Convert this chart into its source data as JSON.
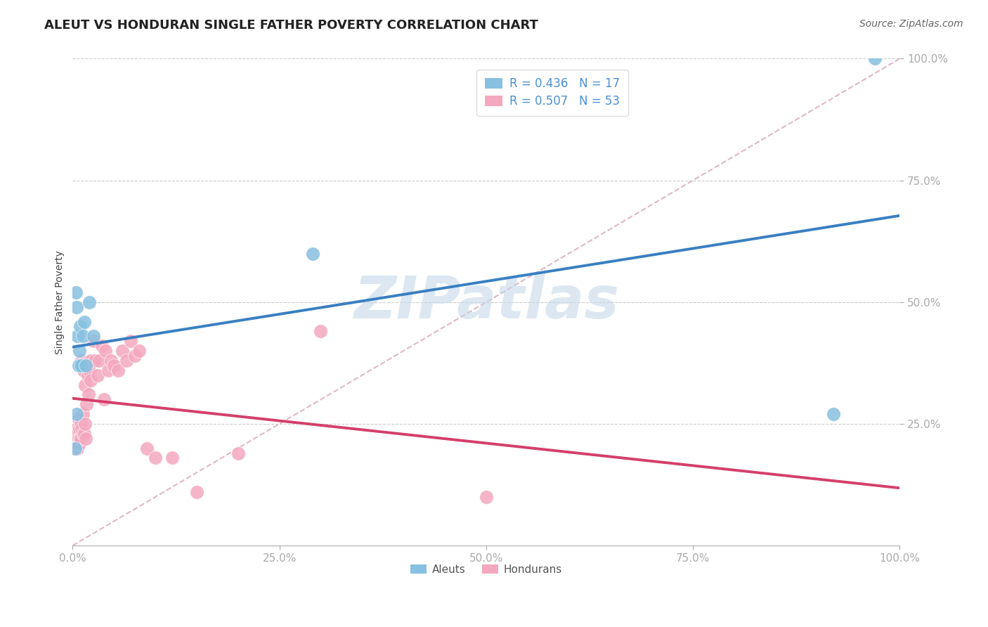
{
  "title": "ALEUT VS HONDURAN SINGLE FATHER POVERTY CORRELATION CHART",
  "source": "Source: ZipAtlas.com",
  "ylabel": "Single Father Poverty",
  "xlim": [
    0.0,
    1.0
  ],
  "ylim": [
    0.0,
    1.0
  ],
  "xticks": [
    0.0,
    0.25,
    0.5,
    0.75,
    1.0
  ],
  "yticks": [
    0.25,
    0.5,
    0.75,
    1.0
  ],
  "xticklabels": [
    "0.0%",
    "25.0%",
    "50.0%",
    "75.0%",
    "100.0%"
  ],
  "yticklabels": [
    "25.0%",
    "50.0%",
    "75.0%",
    "100.0%"
  ],
  "aleut_R": 0.436,
  "aleut_N": 17,
  "honduran_R": 0.507,
  "honduran_N": 53,
  "aleut_color": "#87c0e0",
  "honduran_color": "#f4a8bf",
  "aleut_edge_color": "#87c0e0",
  "honduran_edge_color": "#f4a8bf",
  "aleut_line_color": "#3a7fc1",
  "honduran_line_color": "#d43f6a",
  "diagonal_color": "#e0b8c8",
  "watermark_color": "#c5d8ea",
  "background_color": "#ffffff",
  "grid_color": "#cccccc",
  "title_color": "#222222",
  "tick_color": "#4a90d9",
  "source_color": "#666666",
  "ylabel_color": "#444444",
  "legend_text_color": "#4a90d9",
  "legend_edge_color": "#dddddd",
  "aleut_x": [
    0.003,
    0.004,
    0.005,
    0.005,
    0.006,
    0.007,
    0.008,
    0.009,
    0.01,
    0.012,
    0.014,
    0.016,
    0.02,
    0.025,
    0.29,
    0.92,
    0.97
  ],
  "aleut_y": [
    0.2,
    0.52,
    0.27,
    0.49,
    0.43,
    0.37,
    0.4,
    0.45,
    0.37,
    0.43,
    0.46,
    0.37,
    0.5,
    0.43,
    0.6,
    0.27,
    1.0
  ],
  "honduran_x": [
    0.003,
    0.004,
    0.005,
    0.005,
    0.005,
    0.006,
    0.006,
    0.007,
    0.007,
    0.008,
    0.008,
    0.009,
    0.01,
    0.01,
    0.011,
    0.011,
    0.012,
    0.012,
    0.013,
    0.014,
    0.015,
    0.015,
    0.016,
    0.017,
    0.018,
    0.019,
    0.02,
    0.021,
    0.022,
    0.023,
    0.025,
    0.027,
    0.03,
    0.032,
    0.035,
    0.038,
    0.04,
    0.043,
    0.046,
    0.05,
    0.055,
    0.06,
    0.065,
    0.07,
    0.075,
    0.08,
    0.09,
    0.1,
    0.12,
    0.15,
    0.2,
    0.3,
    0.5
  ],
  "honduran_y": [
    0.21,
    0.23,
    0.2,
    0.22,
    0.24,
    0.2,
    0.21,
    0.22,
    0.26,
    0.21,
    0.24,
    0.22,
    0.22,
    0.25,
    0.38,
    0.24,
    0.23,
    0.27,
    0.36,
    0.23,
    0.25,
    0.33,
    0.22,
    0.29,
    0.35,
    0.31,
    0.36,
    0.38,
    0.34,
    0.38,
    0.42,
    0.38,
    0.35,
    0.38,
    0.41,
    0.3,
    0.4,
    0.36,
    0.38,
    0.37,
    0.36,
    0.4,
    0.38,
    0.42,
    0.39,
    0.4,
    0.2,
    0.18,
    0.18,
    0.11,
    0.19,
    0.44,
    0.1
  ],
  "title_fontsize": 13,
  "axis_label_fontsize": 10,
  "tick_fontsize": 11,
  "legend_fontsize": 12,
  "source_fontsize": 10
}
